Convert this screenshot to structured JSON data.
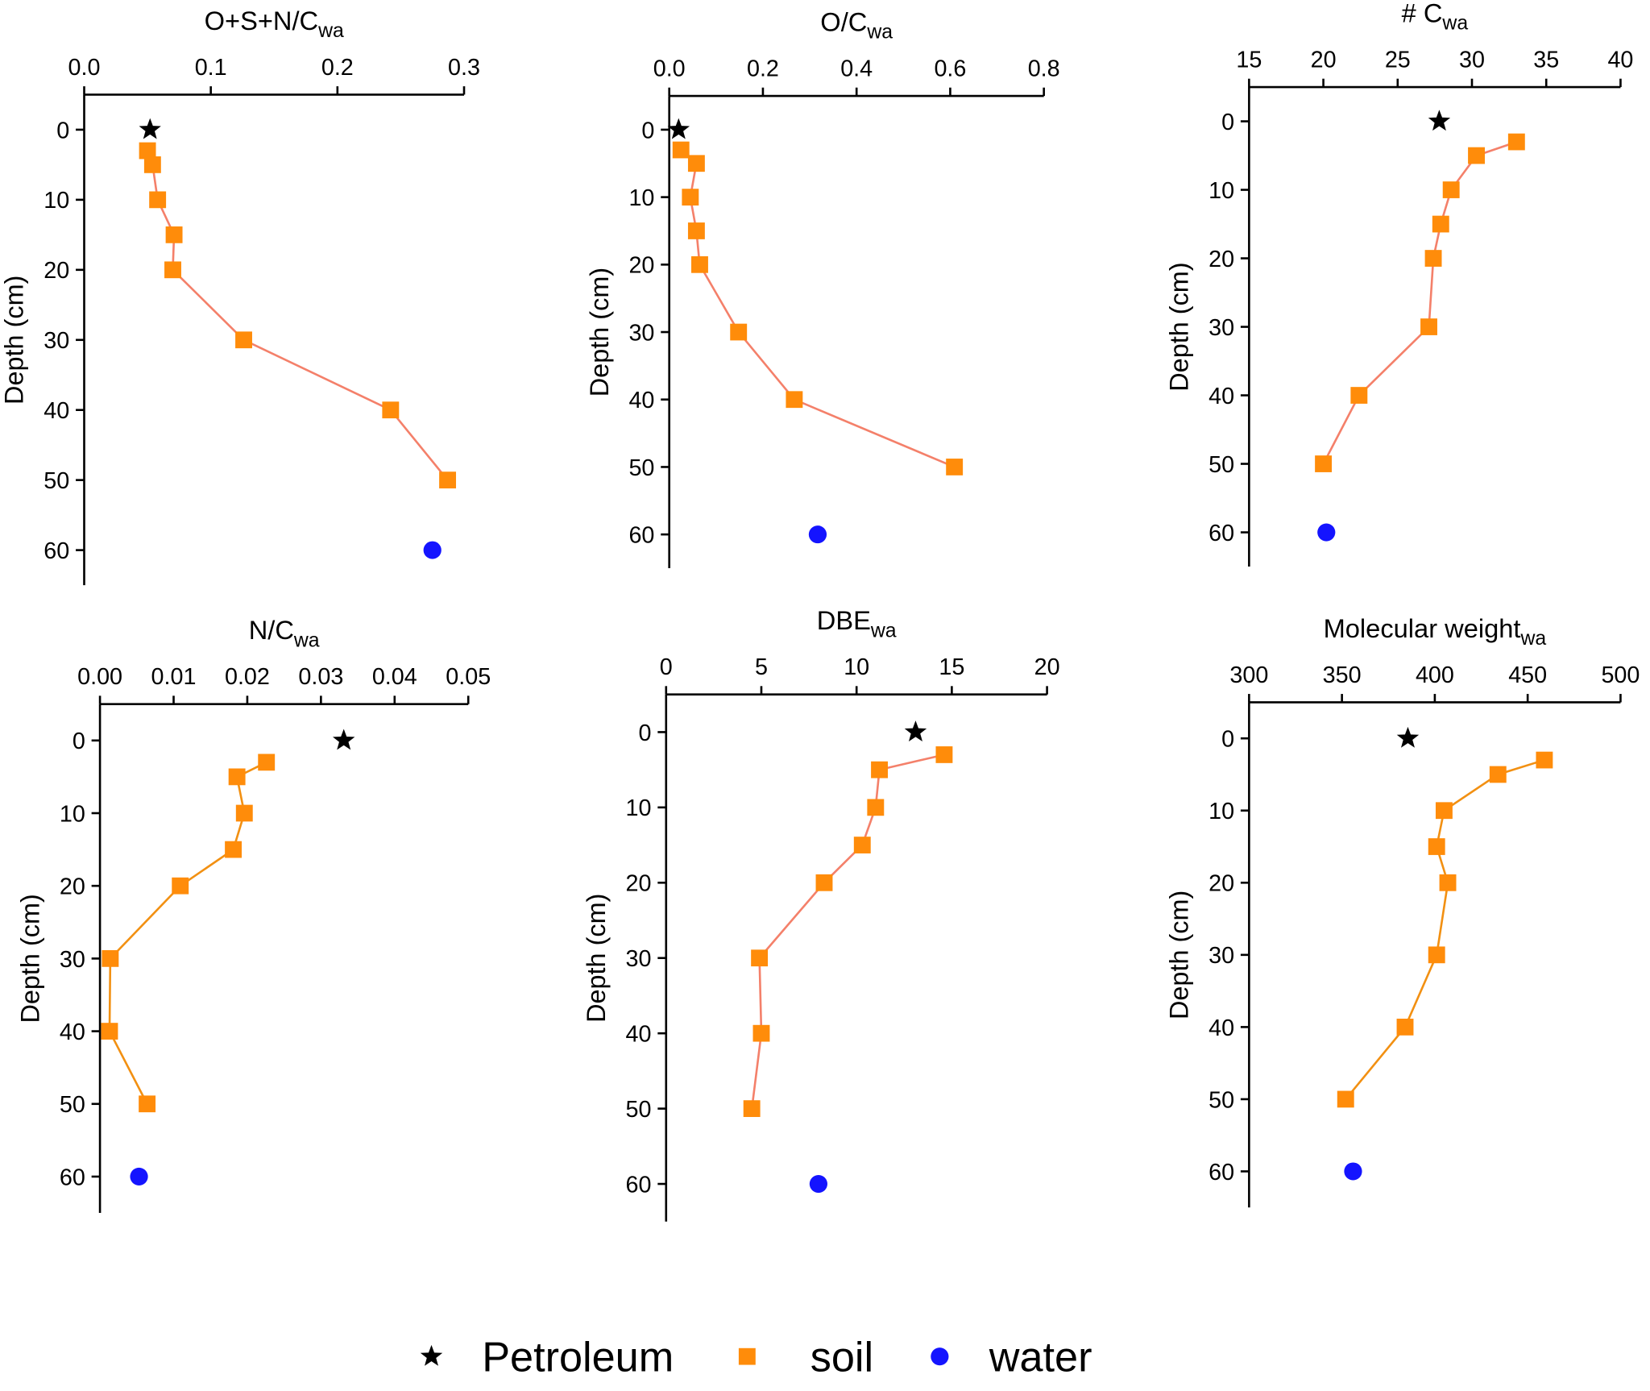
{
  "chart_data": [
    {
      "type": "scatter",
      "title": "O+S+N/C",
      "title_subscript": "wa",
      "ylabel": "Depth (cm)",
      "xlim": [
        0,
        0.3
      ],
      "xticks": [
        {
          "value": 0,
          "label": "0.0"
        },
        0.1,
        0.2,
        0.3
      ],
      "ylim": [
        -5,
        65
      ],
      "yticks": [
        0,
        10,
        20,
        30,
        40,
        50,
        60
      ],
      "y_inverted": true,
      "series": [
        {
          "name": "Petroleum",
          "marker": "star",
          "color": "#000000",
          "x": [
            0.052
          ],
          "y": [
            0
          ]
        },
        {
          "name": "soil",
          "marker": "square",
          "color": "#ff8c0a",
          "line_color": "#f4806a",
          "x": [
            0.05,
            0.054,
            0.058,
            0.071,
            0.07,
            0.126,
            0.242,
            0.287
          ],
          "y": [
            3,
            5,
            10,
            15,
            20,
            30,
            40,
            50
          ]
        },
        {
          "name": "water",
          "marker": "circle",
          "color": "#1414ff",
          "x": [
            0.275
          ],
          "y": [
            60
          ]
        }
      ]
    },
    {
      "type": "scatter",
      "title": "O/C",
      "title_subscript": "wa",
      "ylabel": "Depth (cm)",
      "xlim": [
        0,
        0.8
      ],
      "xticks": [
        {
          "value": 0,
          "label": "0.0"
        },
        0.2,
        0.4,
        0.6,
        0.8
      ],
      "ylim": [
        -5,
        65
      ],
      "yticks": [
        0,
        10,
        20,
        30,
        40,
        50,
        60
      ],
      "y_inverted": true,
      "series": [
        {
          "name": "Petroleum",
          "marker": "star",
          "color": "#000000",
          "x": [
            0.02
          ],
          "y": [
            0
          ]
        },
        {
          "name": "soil",
          "marker": "square",
          "color": "#ff8c0a",
          "line_color": "#f4806a",
          "x": [
            0.025,
            0.058,
            0.045,
            0.058,
            0.065,
            0.148,
            0.267,
            0.609
          ],
          "y": [
            3,
            5,
            10,
            15,
            20,
            30,
            40,
            50
          ]
        },
        {
          "name": "water",
          "marker": "circle",
          "color": "#1414ff",
          "x": [
            0.317
          ],
          "y": [
            60
          ]
        }
      ]
    },
    {
      "type": "scatter",
      "title": "# C",
      "title_subscript": "wa",
      "ylabel": "Depth (cm)",
      "xlim": [
        15,
        40
      ],
      "xticks": [
        15,
        20,
        25,
        30,
        35,
        40
      ],
      "ylim": [
        -5,
        65
      ],
      "yticks": [
        0,
        10,
        20,
        30,
        40,
        50,
        60
      ],
      "y_inverted": true,
      "series": [
        {
          "name": "Petroleum",
          "marker": "star",
          "color": "#000000",
          "x": [
            27.8
          ],
          "y": [
            0
          ]
        },
        {
          "name": "soil",
          "marker": "square",
          "color": "#ff8c0a",
          "line_color": "#f4806a",
          "x": [
            33.0,
            30.3,
            28.6,
            27.9,
            27.4,
            27.1,
            22.4,
            20.0
          ],
          "y": [
            3,
            5,
            10,
            15,
            20,
            30,
            40,
            50
          ]
        },
        {
          "name": "water",
          "marker": "circle",
          "color": "#1414ff",
          "x": [
            20.2
          ],
          "y": [
            60
          ]
        }
      ]
    },
    {
      "type": "scatter",
      "title": "N/C",
      "title_subscript": "wa",
      "ylabel": "Depth (cm)",
      "xlim": [
        0,
        0.05
      ],
      "xticks": [
        {
          "value": 0,
          "label": "0.00"
        },
        {
          "value": 0.01,
          "label": "0.01"
        },
        {
          "value": 0.02,
          "label": "0.02"
        },
        {
          "value": 0.03,
          "label": "0.03"
        },
        {
          "value": 0.04,
          "label": "0.04"
        },
        {
          "value": 0.05,
          "label": "0.05"
        }
      ],
      "ylim": [
        -5,
        65
      ],
      "yticks": [
        0,
        10,
        20,
        30,
        40,
        50,
        60
      ],
      "y_inverted": true,
      "series": [
        {
          "name": "Petroleum",
          "marker": "star",
          "color": "#000000",
          "x": [
            0.0331
          ],
          "y": [
            0
          ]
        },
        {
          "name": "soil",
          "marker": "square",
          "color": "#ff8c0a",
          "line_color": "#f29012",
          "x": [
            0.0226,
            0.0186,
            0.0196,
            0.0181,
            0.0109,
            0.0014,
            0.0013,
            0.0064
          ],
          "y": [
            3,
            5,
            10,
            15,
            20,
            30,
            40,
            50
          ]
        },
        {
          "name": "water",
          "marker": "circle",
          "color": "#1414ff",
          "x": [
            0.0053
          ],
          "y": [
            60
          ]
        }
      ]
    },
    {
      "type": "scatter",
      "title": "DBE",
      "title_subscript": "wa",
      "ylabel": "Depth (cm)",
      "xlim": [
        0,
        20
      ],
      "xticks": [
        0,
        5,
        10,
        15,
        20
      ],
      "ylim": [
        -5,
        65
      ],
      "yticks": [
        0,
        10,
        20,
        30,
        40,
        50,
        60
      ],
      "y_inverted": true,
      "series": [
        {
          "name": "Petroleum",
          "marker": "star",
          "color": "#000000",
          "x": [
            13.1
          ],
          "y": [
            0
          ]
        },
        {
          "name": "soil",
          "marker": "square",
          "color": "#ff8c0a",
          "line_color": "#f4806a",
          "x": [
            14.6,
            11.2,
            11.0,
            10.3,
            8.3,
            4.9,
            5.0,
            4.5
          ],
          "y": [
            3,
            5,
            10,
            15,
            20,
            30,
            40,
            50
          ]
        },
        {
          "name": "water",
          "marker": "circle",
          "color": "#1414ff",
          "x": [
            8.0
          ],
          "y": [
            60
          ]
        }
      ]
    },
    {
      "type": "scatter",
      "title": "Molecular weight",
      "title_subscript": "wa",
      "ylabel": "Depth (cm)",
      "xlim": [
        300,
        500
      ],
      "xticks": [
        300,
        350,
        400,
        450,
        500
      ],
      "ylim": [
        -5,
        65
      ],
      "yticks": [
        0,
        10,
        20,
        30,
        40,
        50,
        60
      ],
      "y_inverted": true,
      "series": [
        {
          "name": "Petroleum",
          "marker": "star",
          "color": "#000000",
          "x": [
            385.5
          ],
          "y": [
            0
          ]
        },
        {
          "name": "soil",
          "marker": "square",
          "color": "#ff8c0a",
          "line_color": "#f29012",
          "x": [
            459,
            434,
            405,
            401,
            407,
            401,
            384,
            352
          ],
          "y": [
            3,
            5,
            10,
            15,
            20,
            30,
            40,
            50
          ]
        },
        {
          "name": "water",
          "marker": "circle",
          "color": "#1414ff",
          "x": [
            356
          ],
          "y": [
            60
          ]
        }
      ]
    }
  ]
}
